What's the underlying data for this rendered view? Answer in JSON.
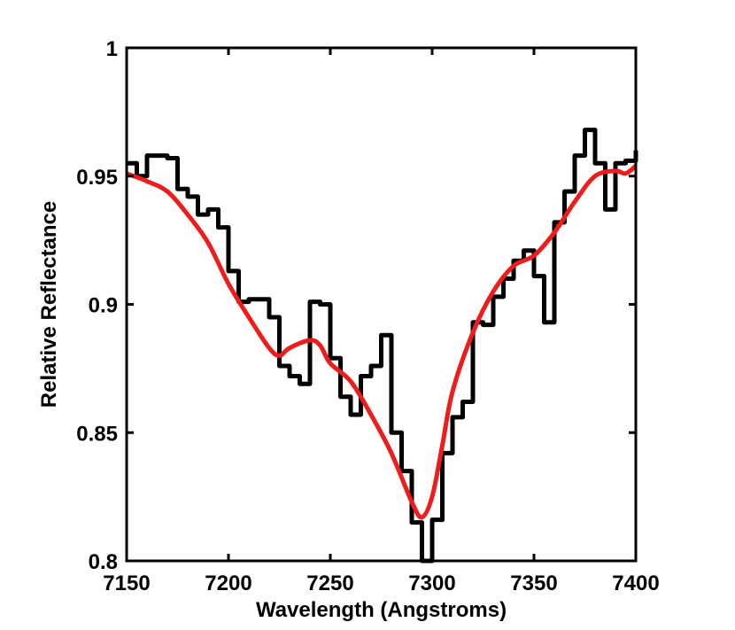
{
  "chart_data": {
    "type": "line",
    "title": "",
    "xlabel": "Wavelength (Angstroms)",
    "ylabel": "Relative Reflectance",
    "xlim": [
      7150,
      7400
    ],
    "ylim": [
      0.8,
      1.0
    ],
    "grid": false,
    "legend": "none",
    "x_ticks": [
      7150,
      7200,
      7250,
      7300,
      7350,
      7400
    ],
    "y_ticks": [
      0.8,
      0.85,
      0.9,
      0.95,
      1.0
    ],
    "x_tick_labels": [
      "7150",
      "7200",
      "7250",
      "7300",
      "7350",
      "7400"
    ],
    "y_tick_labels": [
      "0.8",
      "0.85",
      "0.9",
      "0.95",
      "1"
    ],
    "series": [
      {
        "style": "steps",
        "color": "#000000",
        "x": [
          7150,
          7155,
          7160,
          7170,
          7175,
          7180,
          7185,
          7190,
          7195,
          7200,
          7205,
          7210,
          7215,
          7220,
          7225,
          7230,
          7235,
          7240,
          7245,
          7250,
          7255,
          7260,
          7265,
          7270,
          7275,
          7280,
          7285,
          7290,
          7295,
          7300,
          7305,
          7310,
          7315,
          7320,
          7325,
          7330,
          7335,
          7340,
          7345,
          7350,
          7355,
          7360,
          7365,
          7370,
          7375,
          7380,
          7385,
          7390,
          7395,
          7400
        ],
        "y": [
          0.955,
          0.95,
          0.958,
          0.957,
          0.945,
          0.942,
          0.935,
          0.937,
          0.93,
          0.913,
          0.901,
          0.902,
          0.902,
          0.895,
          0.876,
          0.872,
          0.869,
          0.901,
          0.9,
          0.879,
          0.864,
          0.857,
          0.872,
          0.876,
          0.888,
          0.85,
          0.835,
          0.815,
          0.795,
          0.816,
          0.842,
          0.856,
          0.862,
          0.893,
          0.892,
          0.903,
          0.91,
          0.917,
          0.921,
          0.911,
          0.893,
          0.932,
          0.944,
          0.958,
          0.968,
          0.955,
          0.937,
          0.955,
          0.956,
          0.96
        ]
      },
      {
        "style": "smooth",
        "color": "#ee1c1c",
        "x": [
          7150,
          7160,
          7170,
          7180,
          7190,
          7200,
          7210,
          7220,
          7225,
          7230,
          7240,
          7245,
          7250,
          7260,
          7270,
          7280,
          7290,
          7295,
          7300,
          7305,
          7310,
          7320,
          7330,
          7340,
          7350,
          7360,
          7370,
          7380,
          7390,
          7395,
          7400
        ],
        "y": [
          0.951,
          0.948,
          0.944,
          0.935,
          0.924,
          0.908,
          0.895,
          0.883,
          0.88,
          0.883,
          0.886,
          0.884,
          0.877,
          0.87,
          0.857,
          0.842,
          0.823,
          0.817,
          0.825,
          0.845,
          0.866,
          0.889,
          0.905,
          0.915,
          0.919,
          0.928,
          0.94,
          0.95,
          0.952,
          0.951,
          0.954
        ]
      }
    ]
  }
}
